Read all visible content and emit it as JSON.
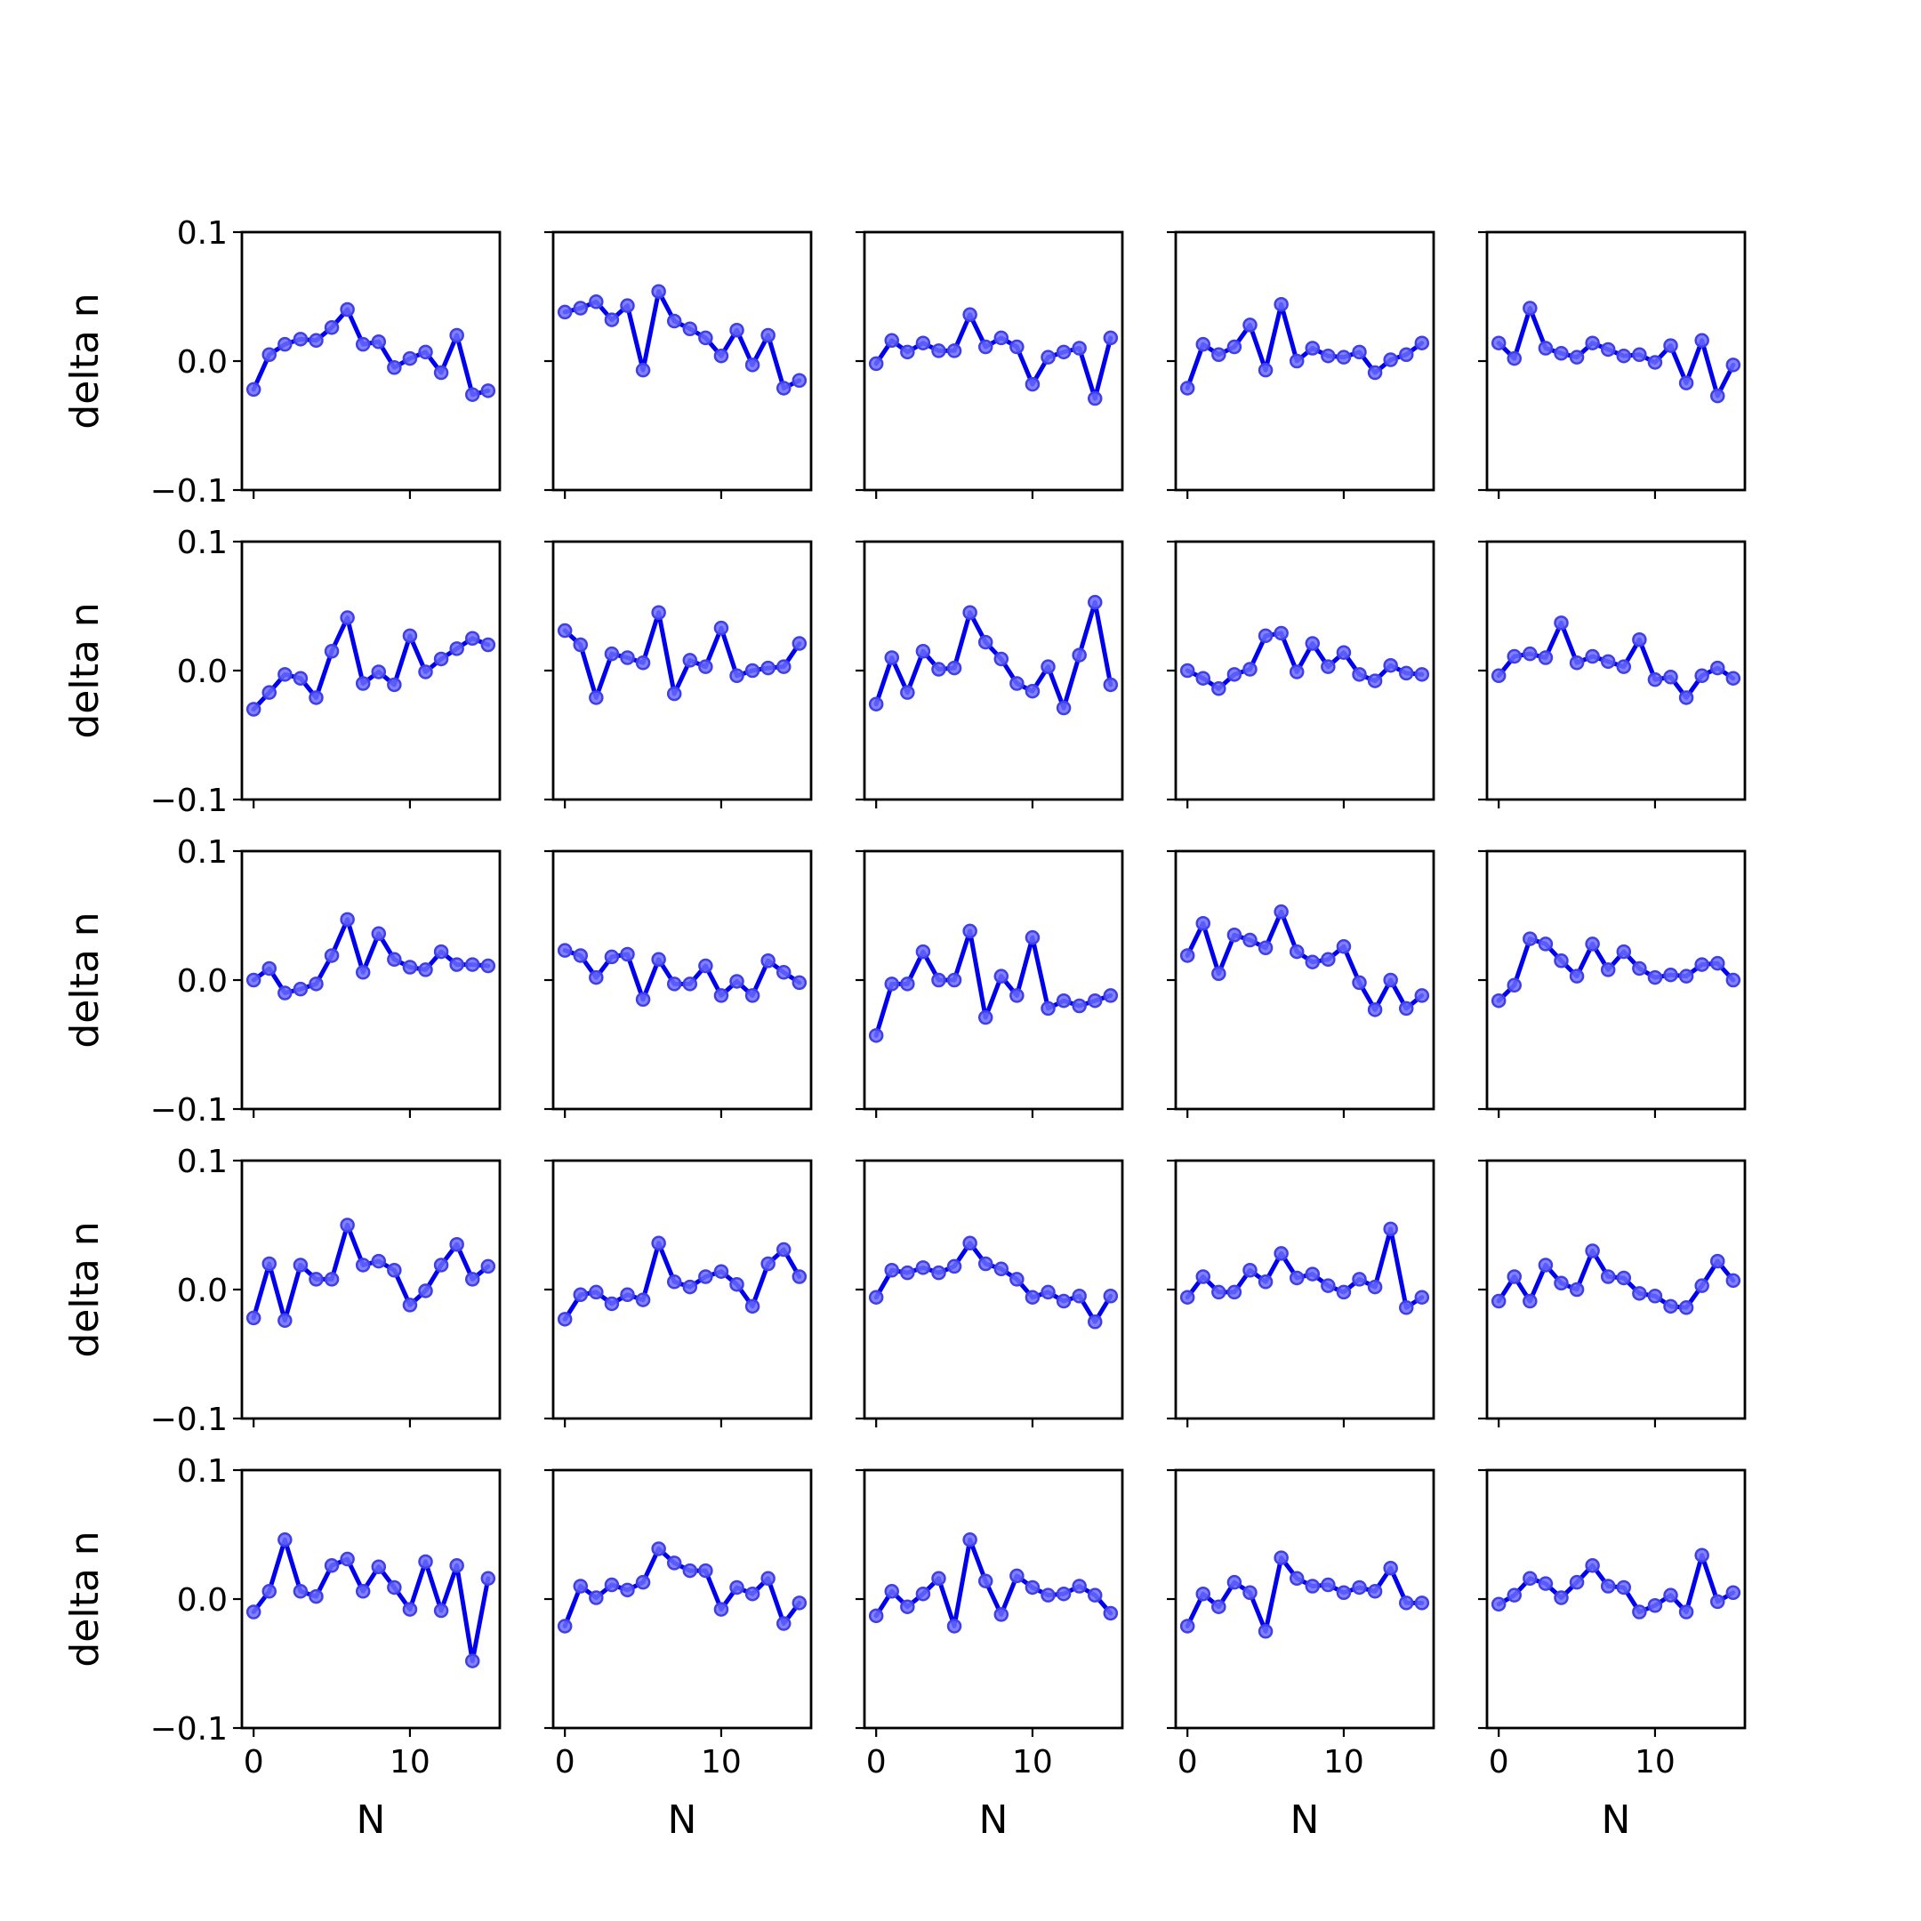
{
  "chart_data": {
    "type": "line",
    "layout": "5x5 grid of small multiples",
    "shared_axes": {
      "x_label": "N",
      "y_label": "delta n",
      "x_range": [
        -0.75,
        15.75
      ],
      "y_range": [
        -0.1,
        0.1
      ],
      "x_ticks": [
        0,
        10
      ],
      "x_tick_labels": [
        "0",
        "10"
      ],
      "y_ticks": [
        -0.1,
        0.0,
        0.1
      ],
      "y_tick_labels": [
        "−0.1",
        "0.0",
        "0.1"
      ],
      "grid": false
    },
    "colors": {
      "line": "#0000ee",
      "marker_fill": "#6b6bff",
      "marker_edge": "#3f3fe6"
    },
    "x": [
      0,
      1,
      2,
      3,
      4,
      5,
      6,
      7,
      8,
      9,
      10,
      11,
      12,
      13,
      14,
      15
    ],
    "panels": [
      [
        {
          "values": [
            -0.022,
            0.005,
            0.013,
            0.017,
            0.016,
            0.026,
            0.04,
            0.013,
            0.015,
            -0.005,
            0.002,
            0.007,
            -0.009,
            0.02,
            -0.026,
            -0.023
          ]
        },
        {
          "values": [
            0.038,
            0.041,
            0.046,
            0.032,
            0.043,
            -0.007,
            0.054,
            0.031,
            0.025,
            0.018,
            0.004,
            0.024,
            -0.003,
            0.02,
            -0.021,
            -0.015
          ]
        },
        {
          "values": [
            -0.002,
            0.016,
            0.007,
            0.014,
            0.008,
            0.008,
            0.036,
            0.011,
            0.018,
            0.011,
            -0.018,
            0.003,
            0.007,
            0.01,
            -0.029,
            0.018
          ]
        },
        {
          "values": [
            -0.021,
            0.013,
            0.005,
            0.011,
            0.028,
            -0.007,
            0.044,
            0.0,
            0.01,
            0.004,
            0.003,
            0.007,
            -0.009,
            0.001,
            0.005,
            0.014
          ]
        },
        {
          "values": [
            0.014,
            0.002,
            0.041,
            0.01,
            0.006,
            0.003,
            0.014,
            0.009,
            0.004,
            0.005,
            -0.001,
            0.012,
            -0.017,
            0.016,
            -0.027,
            -0.003
          ]
        }
      ],
      [
        {
          "values": [
            -0.03,
            -0.017,
            -0.003,
            -0.006,
            -0.021,
            0.015,
            0.041,
            -0.01,
            -0.001,
            -0.011,
            0.027,
            -0.001,
            0.009,
            0.017,
            0.025,
            0.02
          ]
        },
        {
          "values": [
            0.031,
            0.02,
            -0.021,
            0.013,
            0.01,
            0.006,
            0.045,
            -0.018,
            0.008,
            0.003,
            0.033,
            -0.004,
            0.0,
            0.002,
            0.003,
            0.021
          ]
        },
        {
          "values": [
            -0.026,
            0.01,
            -0.017,
            0.015,
            0.001,
            0.002,
            0.045,
            0.022,
            0.009,
            -0.01,
            -0.016,
            0.003,
            -0.029,
            0.012,
            0.053,
            -0.011
          ]
        },
        {
          "values": [
            0.0,
            -0.006,
            -0.014,
            -0.003,
            0.001,
            0.027,
            0.029,
            -0.001,
            0.021,
            0.003,
            0.014,
            -0.003,
            -0.008,
            0.004,
            -0.002,
            -0.003
          ]
        },
        {
          "values": [
            -0.004,
            0.011,
            0.013,
            0.01,
            0.037,
            0.006,
            0.011,
            0.007,
            0.003,
            0.024,
            -0.007,
            -0.005,
            -0.021,
            -0.004,
            0.002,
            -0.006
          ]
        }
      ],
      [
        {
          "values": [
            0.0,
            0.009,
            -0.01,
            -0.007,
            -0.003,
            0.019,
            0.047,
            0.006,
            0.036,
            0.016,
            0.01,
            0.008,
            0.022,
            0.012,
            0.012,
            0.011
          ]
        },
        {
          "values": [
            0.023,
            0.019,
            0.002,
            0.018,
            0.02,
            -0.015,
            0.016,
            -0.003,
            -0.003,
            0.011,
            -0.012,
            -0.001,
            -0.012,
            0.015,
            0.006,
            -0.002
          ]
        },
        {
          "values": [
            -0.043,
            -0.003,
            -0.003,
            0.022,
            0.0,
            0.0,
            0.038,
            -0.029,
            0.003,
            -0.012,
            0.033,
            -0.022,
            -0.016,
            -0.02,
            -0.016,
            -0.012
          ]
        },
        {
          "values": [
            0.019,
            0.044,
            0.005,
            0.035,
            0.031,
            0.025,
            0.053,
            0.022,
            0.014,
            0.016,
            0.026,
            -0.002,
            -0.023,
            0.0,
            -0.022,
            -0.012
          ]
        },
        {
          "values": [
            -0.016,
            -0.004,
            0.032,
            0.028,
            0.015,
            0.003,
            0.028,
            0.008,
            0.022,
            0.009,
            0.002,
            0.004,
            0.003,
            0.012,
            0.013,
            0.0
          ]
        }
      ],
      [
        {
          "values": [
            -0.022,
            0.02,
            -0.024,
            0.019,
            0.008,
            0.008,
            0.05,
            0.019,
            0.022,
            0.015,
            -0.012,
            -0.001,
            0.019,
            0.035,
            0.008,
            0.018
          ]
        },
        {
          "values": [
            -0.023,
            -0.004,
            -0.002,
            -0.011,
            -0.004,
            -0.008,
            0.036,
            0.006,
            0.002,
            0.01,
            0.014,
            0.004,
            -0.013,
            0.02,
            0.031,
            0.01
          ]
        },
        {
          "values": [
            -0.006,
            0.015,
            0.013,
            0.017,
            0.013,
            0.018,
            0.036,
            0.02,
            0.016,
            0.008,
            -0.006,
            -0.002,
            -0.009,
            -0.005,
            -0.025,
            -0.005
          ]
        },
        {
          "values": [
            -0.006,
            0.01,
            -0.002,
            -0.002,
            0.015,
            0.006,
            0.028,
            0.009,
            0.012,
            0.003,
            -0.002,
            0.008,
            0.002,
            0.047,
            -0.014,
            -0.006
          ]
        },
        {
          "values": [
            -0.009,
            0.01,
            -0.009,
            0.019,
            0.005,
            0.0,
            0.03,
            0.01,
            0.009,
            -0.003,
            -0.005,
            -0.013,
            -0.014,
            0.003,
            0.022,
            0.007
          ]
        }
      ],
      [
        {
          "values": [
            -0.01,
            0.006,
            0.046,
            0.006,
            0.002,
            0.026,
            0.031,
            0.006,
            0.025,
            0.009,
            -0.008,
            0.029,
            -0.009,
            0.026,
            -0.048,
            0.016
          ]
        },
        {
          "values": [
            -0.021,
            0.01,
            0.001,
            0.011,
            0.007,
            0.013,
            0.039,
            0.028,
            0.022,
            0.022,
            -0.008,
            0.009,
            0.004,
            0.016,
            -0.019,
            -0.003
          ]
        },
        {
          "values": [
            -0.013,
            0.006,
            -0.006,
            0.004,
            0.016,
            -0.021,
            0.046,
            0.014,
            -0.012,
            0.018,
            0.009,
            0.003,
            0.004,
            0.01,
            0.003,
            -0.011
          ]
        },
        {
          "values": [
            -0.021,
            0.004,
            -0.006,
            0.013,
            0.005,
            -0.025,
            0.032,
            0.016,
            0.01,
            0.011,
            0.005,
            0.009,
            0.006,
            0.024,
            -0.003,
            -0.003
          ]
        },
        {
          "values": [
            -0.004,
            0.003,
            0.016,
            0.012,
            0.001,
            0.013,
            0.026,
            0.01,
            0.009,
            -0.01,
            -0.005,
            0.003,
            -0.01,
            0.034,
            -0.002,
            0.005
          ]
        }
      ]
    ]
  }
}
